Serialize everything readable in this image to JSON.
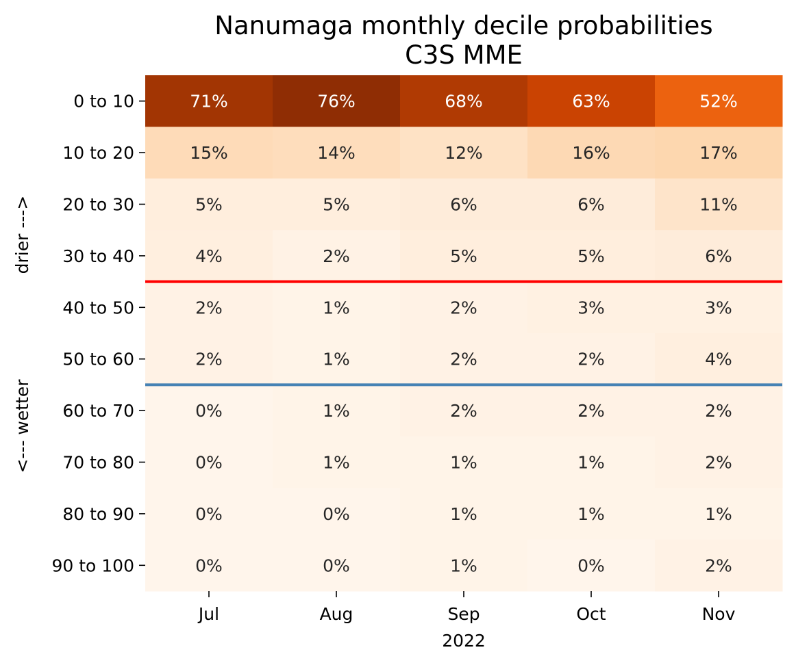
{
  "chart_data": {
    "type": "heatmap",
    "title": "Nanumaga monthly decile probabilities",
    "subtitle": "C3S MME",
    "xlabel": "2022",
    "ylabel_top": "drier --->",
    "ylabel_bottom": "<--- wetter",
    "x_categories": [
      "Jul",
      "Aug",
      "Sep",
      "Oct",
      "Nov"
    ],
    "y_categories": [
      "0 to 10",
      "10 to 20",
      "20 to 30",
      "30 to 40",
      "40 to 50",
      "50 to 60",
      "60 to 70",
      "70 to 80",
      "80 to 90",
      "90 to 100"
    ],
    "values": [
      [
        71,
        76,
        68,
        63,
        52
      ],
      [
        15,
        14,
        12,
        16,
        17
      ],
      [
        5,
        5,
        6,
        6,
        11
      ],
      [
        4,
        2,
        5,
        5,
        6
      ],
      [
        2,
        1,
        2,
        3,
        3
      ],
      [
        2,
        1,
        2,
        2,
        4
      ],
      [
        0,
        1,
        2,
        2,
        2
      ],
      [
        0,
        1,
        1,
        1,
        2
      ],
      [
        0,
        0,
        1,
        1,
        1
      ],
      [
        0,
        0,
        1,
        0,
        2
      ]
    ],
    "value_format": "percent",
    "colormap": "Oranges",
    "color_range": [
      0,
      80
    ],
    "threshold_lines": [
      {
        "after_row": 3,
        "color": "#ff0000"
      },
      {
        "after_row": 5,
        "color": "#4682b4"
      }
    ],
    "grid": false,
    "legend": "none"
  }
}
